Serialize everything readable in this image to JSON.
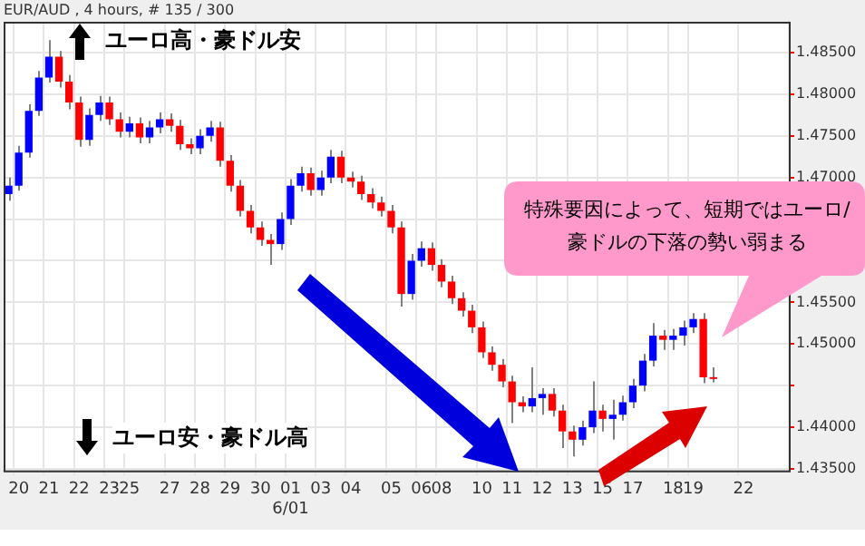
{
  "chart_data": {
    "type": "candlestick",
    "title": "EUR/AUD , 4 hours, # 135 / 300",
    "categories": [
      null,
      "20",
      null,
      null,
      "21",
      null,
      null,
      "22",
      null,
      null,
      "23",
      null,
      "25",
      null,
      null,
      null,
      "27",
      null,
      null,
      "28",
      null,
      null,
      "29",
      null,
      null,
      "30",
      null,
      null,
      "01\n6/01",
      null,
      null,
      "03",
      null,
      null,
      "04",
      null,
      null,
      null,
      "05",
      null,
      null,
      "06",
      null,
      "08",
      null,
      null,
      null,
      "10",
      null,
      null,
      "11",
      null,
      null,
      "12",
      null,
      null,
      "13",
      null,
      null,
      "15",
      null,
      null,
      "17",
      null,
      null,
      null,
      "18",
      null,
      "19",
      null,
      null,
      null,
      null,
      "22",
      null,
      null,
      null,
      null
    ],
    "ohlc": [
      [
        1.468,
        1.47,
        1.4672,
        1.469
      ],
      [
        1.469,
        1.4738,
        1.4684,
        1.473
      ],
      [
        1.473,
        1.4788,
        1.4724,
        1.478
      ],
      [
        1.478,
        1.4828,
        1.4774,
        1.482
      ],
      [
        1.482,
        1.4865,
        1.4814,
        1.4845
      ],
      [
        1.4845,
        1.4852,
        1.4808,
        1.4815
      ],
      [
        1.4815,
        1.4823,
        1.4782,
        1.479
      ],
      [
        1.479,
        1.4797,
        1.4737,
        1.4745
      ],
      [
        1.4745,
        1.4783,
        1.4738,
        1.4775
      ],
      [
        1.4775,
        1.4798,
        1.4768,
        1.479
      ],
      [
        1.479,
        1.4797,
        1.4763,
        1.477
      ],
      [
        1.477,
        1.4778,
        1.4748,
        1.4755
      ],
      [
        1.4755,
        1.4773,
        1.4748,
        1.4765
      ],
      [
        1.4765,
        1.4772,
        1.4741,
        1.4748
      ],
      [
        1.4748,
        1.4768,
        1.4741,
        1.476
      ],
      [
        1.476,
        1.4778,
        1.4753,
        1.477
      ],
      [
        1.477,
        1.4777,
        1.4755,
        1.4762
      ],
      [
        1.4762,
        1.4769,
        1.4733,
        1.474
      ],
      [
        1.474,
        1.4747,
        1.4728,
        1.4735
      ],
      [
        1.4735,
        1.4758,
        1.4728,
        1.475
      ],
      [
        1.475,
        1.4768,
        1.4743,
        1.476
      ],
      [
        1.476,
        1.4767,
        1.4713,
        1.472
      ],
      [
        1.472,
        1.4727,
        1.4683,
        1.469
      ],
      [
        1.469,
        1.4697,
        1.4653,
        1.466
      ],
      [
        1.466,
        1.4667,
        1.4633,
        1.464
      ],
      [
        1.464,
        1.4647,
        1.4618,
        1.4625
      ],
      [
        1.4625,
        1.4632,
        1.4595,
        1.462
      ],
      [
        1.462,
        1.4658,
        1.4613,
        1.465
      ],
      [
        1.465,
        1.4698,
        1.4643,
        1.469
      ],
      [
        1.469,
        1.4713,
        1.4683,
        1.4705
      ],
      [
        1.4705,
        1.4712,
        1.4678,
        1.4685
      ],
      [
        1.4685,
        1.4708,
        1.4678,
        1.47
      ],
      [
        1.47,
        1.4733,
        1.4693,
        1.4725
      ],
      [
        1.4725,
        1.4732,
        1.4693,
        1.47
      ],
      [
        1.47,
        1.4707,
        1.4688,
        1.4695
      ],
      [
        1.4695,
        1.4702,
        1.4673,
        1.468
      ],
      [
        1.468,
        1.4687,
        1.4663,
        1.467
      ],
      [
        1.467,
        1.4677,
        1.4653,
        1.466
      ],
      [
        1.466,
        1.4667,
        1.4633,
        1.464
      ],
      [
        1.464,
        1.4647,
        1.4545,
        1.456
      ],
      [
        1.456,
        1.4608,
        1.4553,
        1.46
      ],
      [
        1.46,
        1.4623,
        1.4593,
        1.4615
      ],
      [
        1.4615,
        1.4622,
        1.4588,
        1.4595
      ],
      [
        1.4595,
        1.4602,
        1.4568,
        1.4575
      ],
      [
        1.4575,
        1.4582,
        1.4548,
        1.4555
      ],
      [
        1.4555,
        1.4562,
        1.4533,
        1.454
      ],
      [
        1.454,
        1.4547,
        1.4513,
        1.452
      ],
      [
        1.452,
        1.4527,
        1.4483,
        1.449
      ],
      [
        1.449,
        1.4497,
        1.4468,
        1.4475
      ],
      [
        1.4475,
        1.4482,
        1.4448,
        1.4455
      ],
      [
        1.4455,
        1.4462,
        1.4405,
        1.443
      ],
      [
        1.443,
        1.4437,
        1.4418,
        1.4425
      ],
      [
        1.4425,
        1.4472,
        1.4418,
        1.4435
      ],
      [
        1.4435,
        1.4447,
        1.4415,
        1.444
      ],
      [
        1.444,
        1.4447,
        1.4413,
        1.442
      ],
      [
        1.442,
        1.4427,
        1.4375,
        1.4395
      ],
      [
        1.4395,
        1.4402,
        1.4365,
        1.4385
      ],
      [
        1.4385,
        1.4408,
        1.4378,
        1.44
      ],
      [
        1.44,
        1.4455,
        1.4393,
        1.442
      ],
      [
        1.442,
        1.4427,
        1.4395,
        1.441
      ],
      [
        1.441,
        1.4433,
        1.4385,
        1.4415
      ],
      [
        1.4415,
        1.4438,
        1.4408,
        1.443
      ],
      [
        1.443,
        1.4458,
        1.4423,
        1.445
      ],
      [
        1.445,
        1.4488,
        1.4443,
        1.448
      ],
      [
        1.448,
        1.4525,
        1.4473,
        1.451
      ],
      [
        1.451,
        1.4517,
        1.4493,
        1.4505
      ],
      [
        1.4505,
        1.4518,
        1.4493,
        1.451
      ],
      [
        1.451,
        1.4528,
        1.4498,
        1.452
      ],
      [
        1.452,
        1.4537,
        1.4513,
        1.453
      ],
      [
        1.453,
        1.4537,
        1.4453,
        1.446
      ],
      [
        1.446,
        1.4472,
        1.4454,
        1.4458
      ],
      null,
      null,
      null,
      null,
      null,
      null,
      null
    ],
    "ylim": [
      1.4348,
      1.4887
    ],
    "yticks": [
      {
        "value": 1.435,
        "label": "1.43500"
      },
      {
        "value": 1.44,
        "label": "1.44000"
      },
      {
        "value": 1.445,
        "label": null
      },
      {
        "value": 1.45,
        "label": "1.45000"
      },
      {
        "value": 1.455,
        "label": "1.45500"
      },
      {
        "value": 1.46,
        "label": null
      },
      {
        "value": 1.465,
        "label": null
      },
      {
        "value": 1.47,
        "label": "1.47000"
      },
      {
        "value": 1.475,
        "label": "1.47500"
      },
      {
        "value": 1.48,
        "label": "1.48000"
      },
      {
        "value": 1.485,
        "label": "1.48500"
      }
    ],
    "grid": true,
    "annotations": [
      "ユーロ高・豪ドル安",
      "ユーロ安・豪ドル高",
      "特殊要因によって、短期ではユーロ/豪ドルの下落の勢い弱まる"
    ]
  }
}
